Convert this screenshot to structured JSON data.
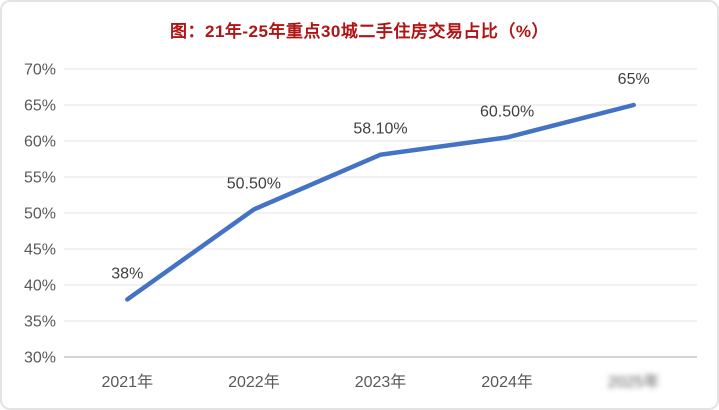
{
  "chart_data": {
    "type": "line",
    "title": "图：21年-25年重点30城二手住房交易占比（%）",
    "title_color": "#b01414",
    "categories": [
      "2021年",
      "2022年",
      "2023年",
      "2024年",
      "2025年"
    ],
    "categories_redacted": [
      false,
      false,
      false,
      false,
      true
    ],
    "values": [
      38,
      50.5,
      58.1,
      60.5,
      65
    ],
    "data_labels": [
      "38%",
      "50.50%",
      "58.10%",
      "60.50%",
      "65%"
    ],
    "ylim": [
      30,
      70
    ],
    "ytick_step": 5,
    "ytick_labels": [
      "30%",
      "35%",
      "40%",
      "45%",
      "50%",
      "55%",
      "60%",
      "65%",
      "70%"
    ],
    "xlabel": "",
    "ylabel": "",
    "grid": true,
    "legend": "none",
    "line_color": "#4472c4",
    "grid_color": "#e4e4e4",
    "axis_color": "#c6c6c6",
    "tick_label_color": "#595959",
    "data_label_color": "#3f3f3f"
  }
}
